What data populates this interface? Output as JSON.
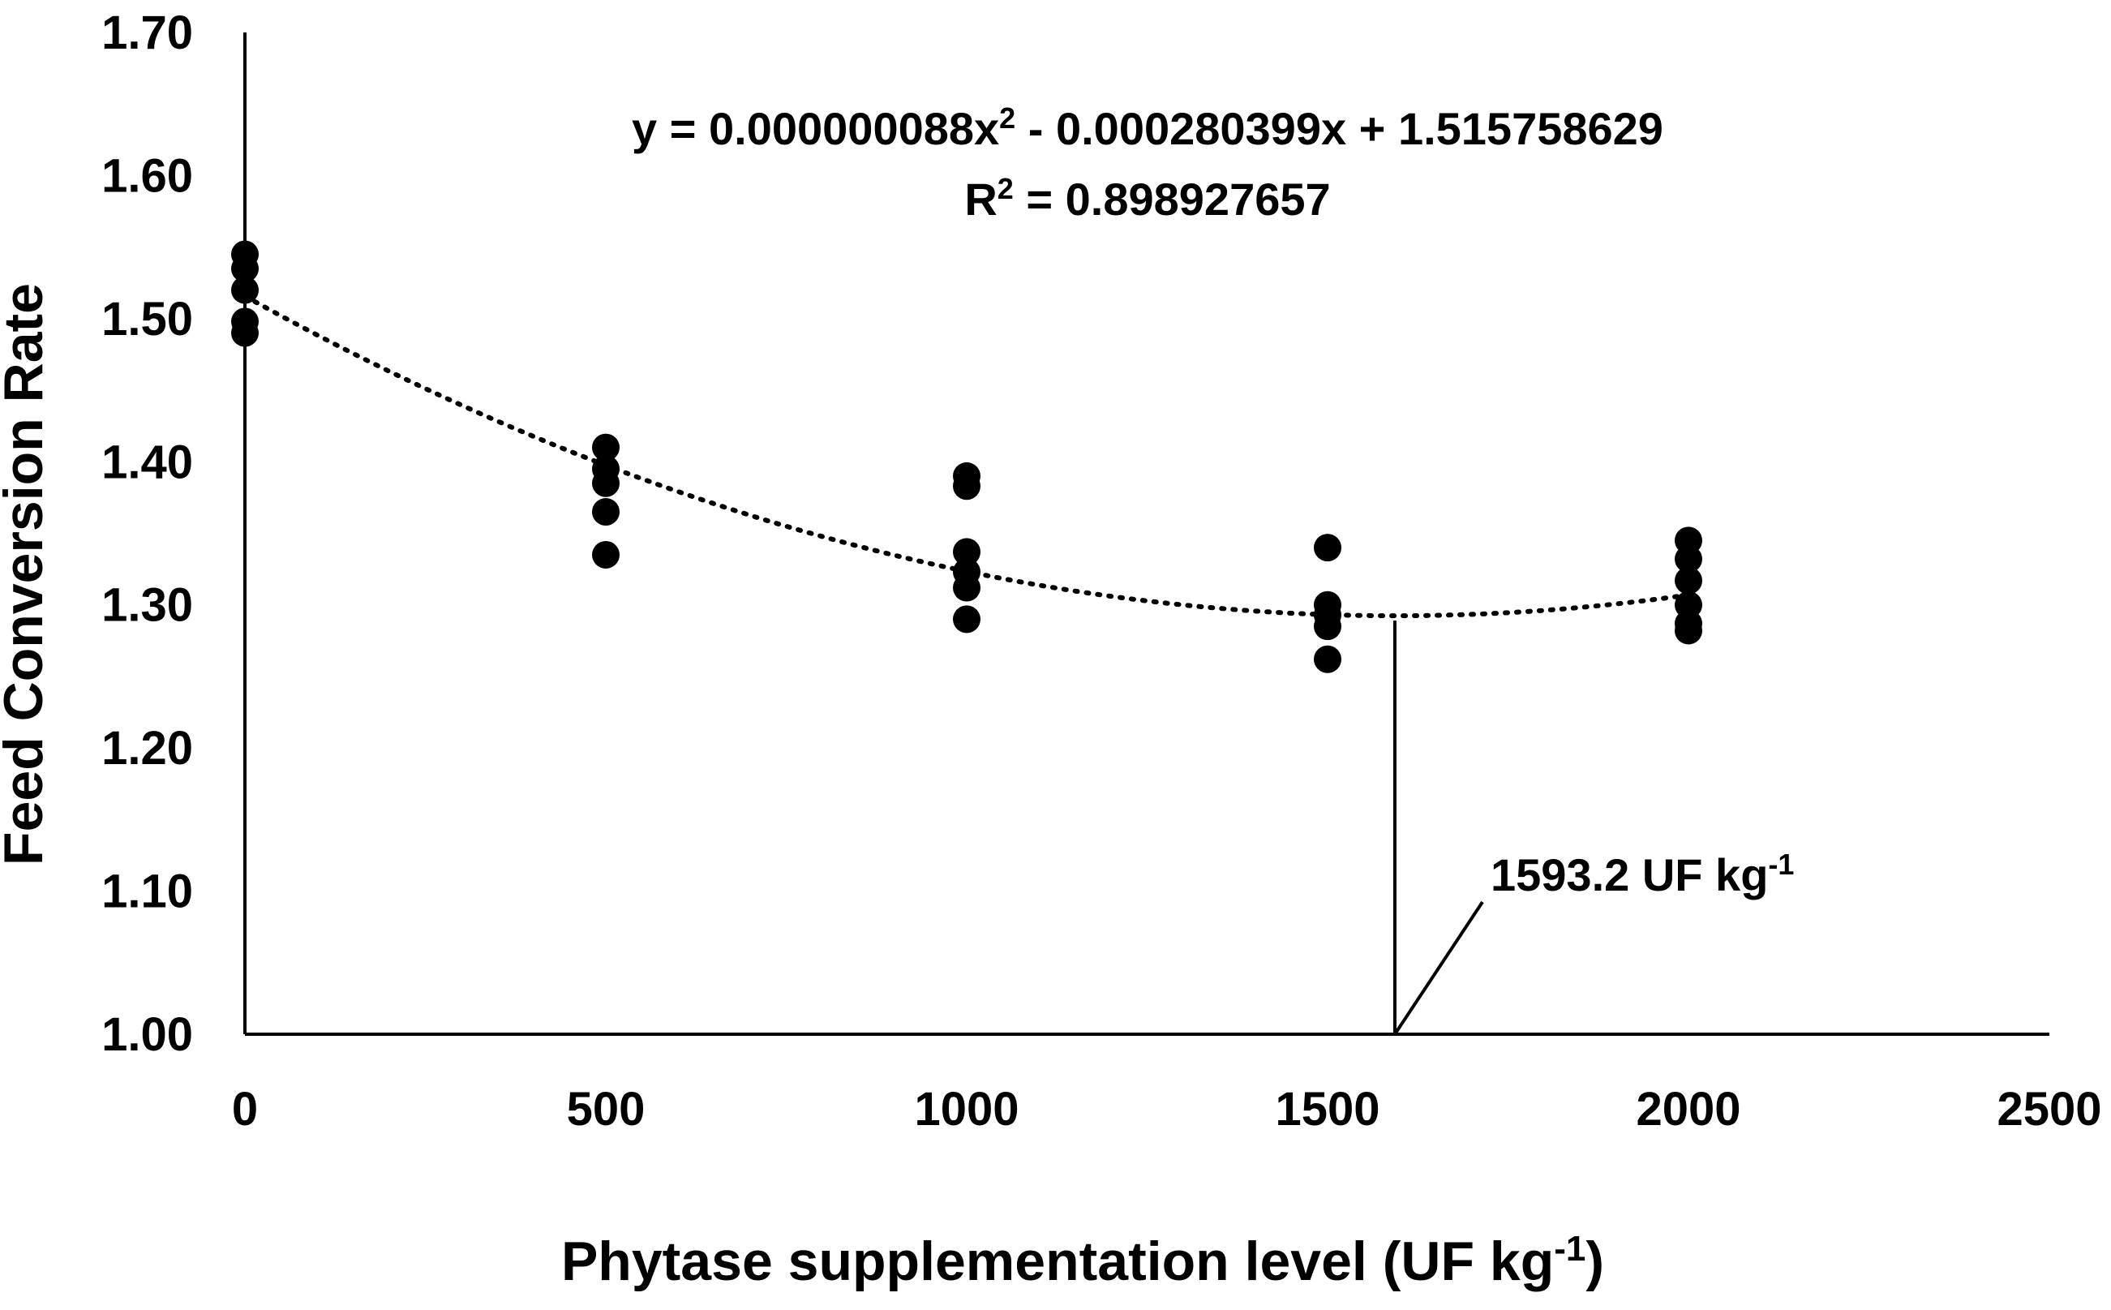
{
  "chart_data": {
    "type": "scatter",
    "xlabel": "Phytase supplementation level (UF kg",
    "xlabel_sup": "-1",
    "xlabel_suffix": ")",
    "ylabel": "Feed Conversion Rate",
    "xlim": [
      0,
      2500
    ],
    "ylim": [
      1.0,
      1.7
    ],
    "x_ticks": [
      "0",
      "500",
      "1000",
      "1500",
      "2000",
      "2500"
    ],
    "y_ticks": [
      "1.00",
      "1.10",
      "1.20",
      "1.30",
      "1.40",
      "1.50",
      "1.60",
      "1.70"
    ],
    "x_tick_values": [
      0,
      500,
      1000,
      1500,
      2000,
      2500
    ],
    "y_tick_values": [
      1.0,
      1.1,
      1.2,
      1.3,
      1.4,
      1.5,
      1.6,
      1.7
    ],
    "grid": false,
    "series": [
      {
        "points": [
          [
            0,
            1.545
          ],
          [
            0,
            1.535
          ],
          [
            0,
            1.52
          ],
          [
            0,
            1.498
          ],
          [
            0,
            1.49
          ],
          [
            500,
            1.41
          ],
          [
            500,
            1.395
          ],
          [
            500,
            1.385
          ],
          [
            500,
            1.365
          ],
          [
            500,
            1.335
          ],
          [
            1000,
            1.39
          ],
          [
            1000,
            1.383
          ],
          [
            1000,
            1.337
          ],
          [
            1000,
            1.323
          ],
          [
            1000,
            1.312
          ],
          [
            1000,
            1.29
          ],
          [
            1500,
            1.34
          ],
          [
            1500,
            1.3
          ],
          [
            1500,
            1.293
          ],
          [
            1500,
            1.285
          ],
          [
            1500,
            1.262
          ],
          [
            2000,
            1.345
          ],
          [
            2000,
            1.332
          ],
          [
            2000,
            1.317
          ],
          [
            2000,
            1.3
          ],
          [
            2000,
            1.287
          ],
          [
            2000,
            1.282
          ]
        ],
        "color": "#000000"
      }
    ],
    "trendline": {
      "type": "polynomial",
      "style": "dotted",
      "a": 8.8e-08,
      "b": -0.000280399,
      "c": 1.515758629,
      "x_range": [
        0,
        2000
      ]
    },
    "equation": {
      "line1_prefix": "y = 0.000000088x",
      "line1_sup": "2",
      "line1_suffix": " - 0.000280399x + 1.515758629",
      "line2_prefix": "R",
      "line2_sup": "2",
      "line2_suffix": " = 0.898927657"
    },
    "optimum": {
      "x": 1593.2,
      "label_prefix": "1593.2 UF kg",
      "label_sup": "-1"
    }
  }
}
